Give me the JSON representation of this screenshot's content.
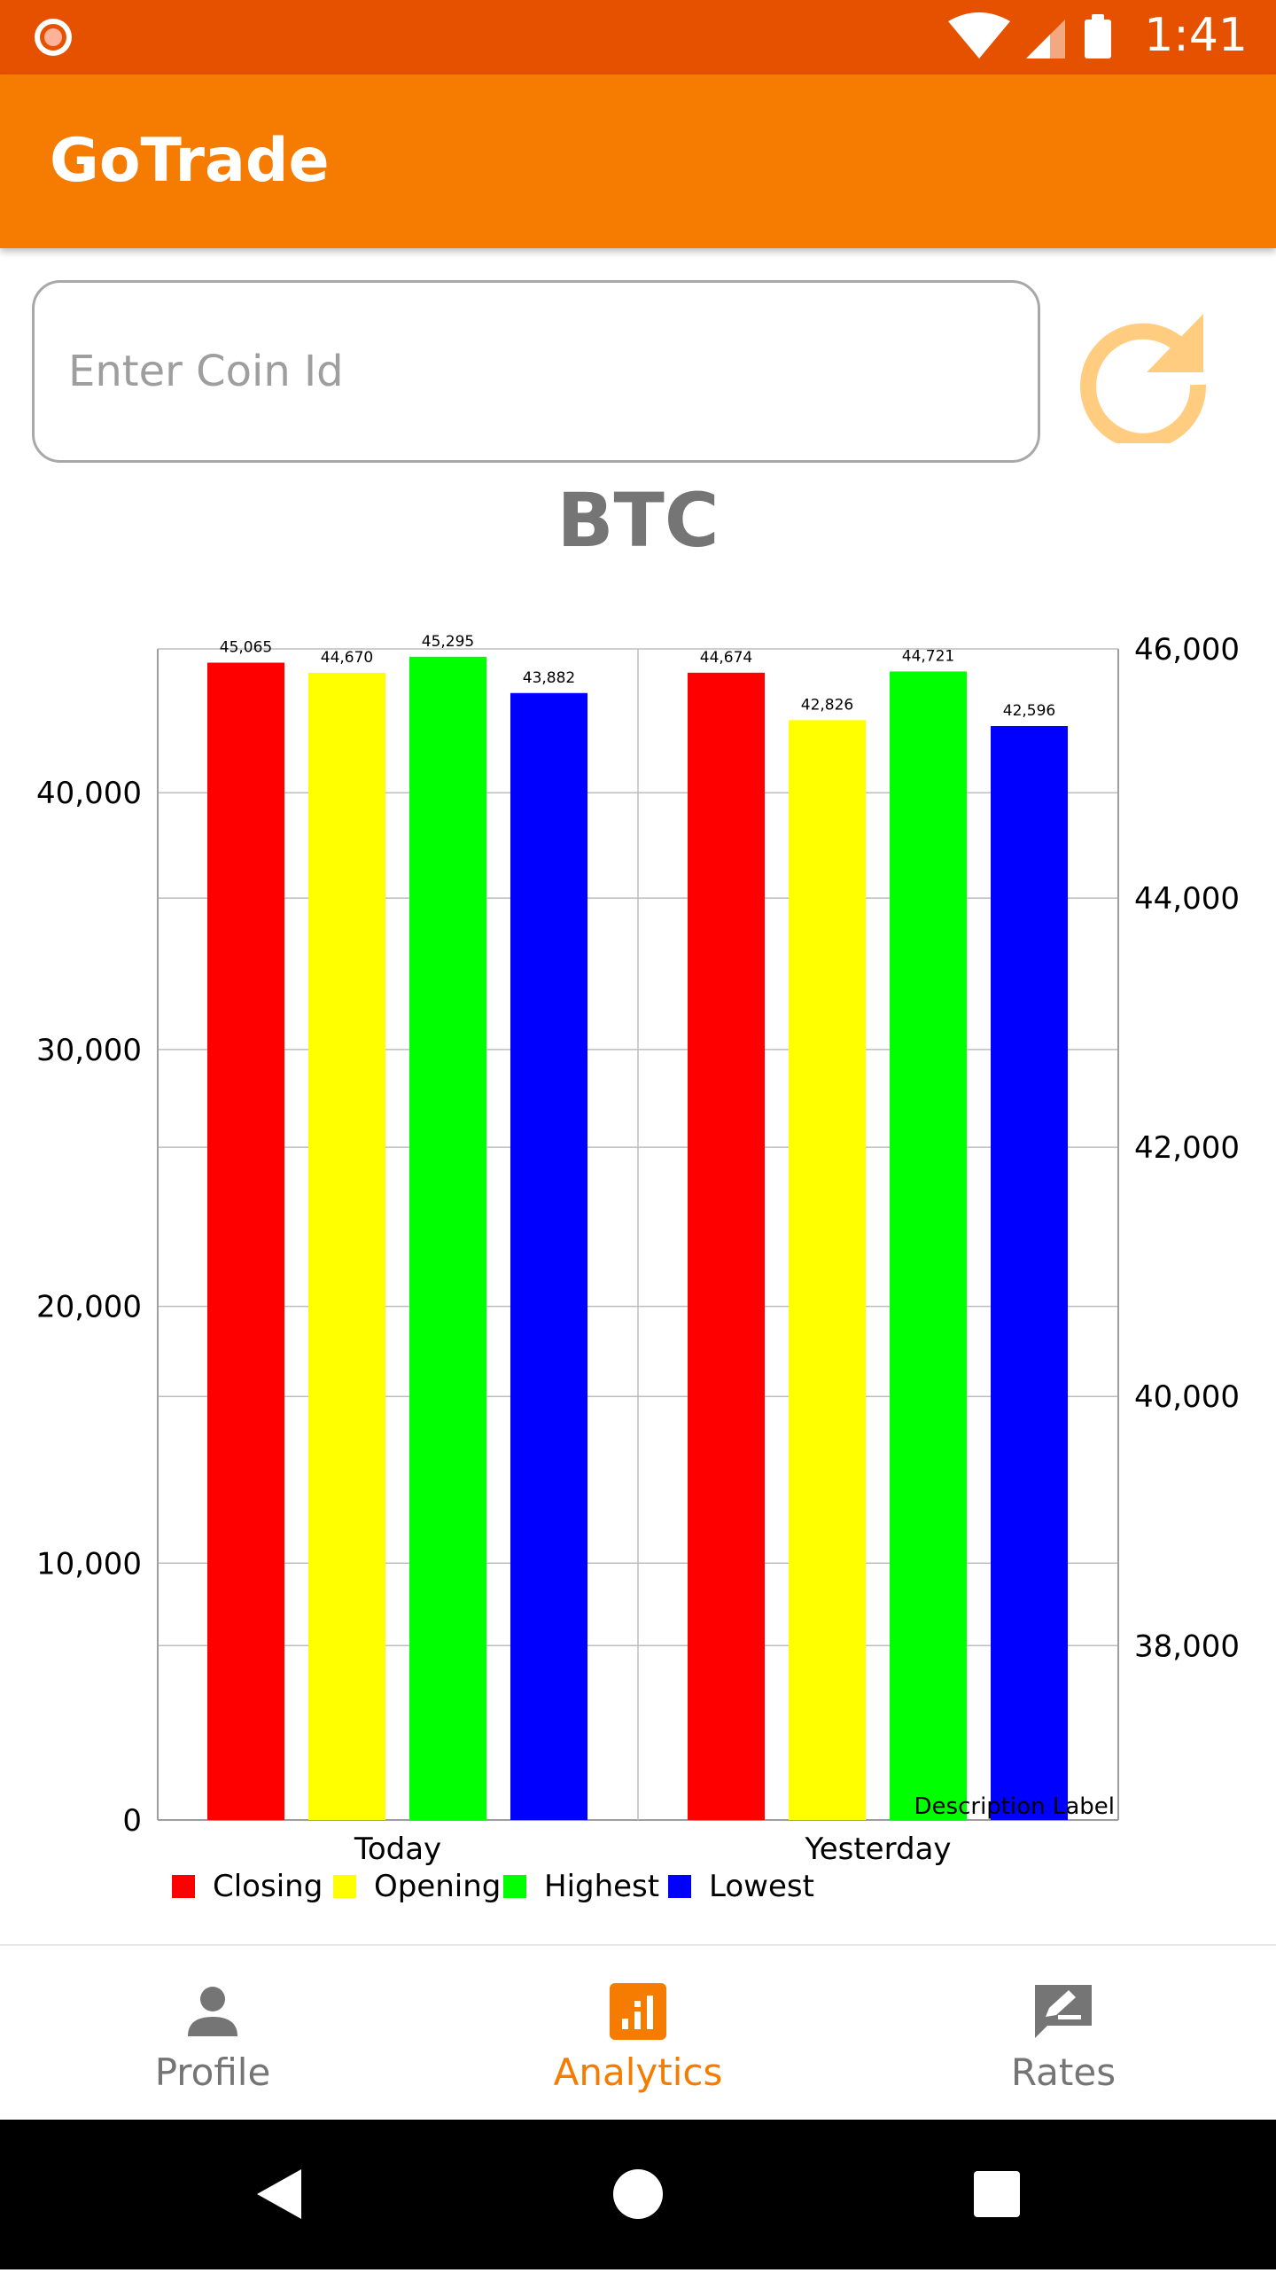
{
  "status_bar": {
    "time": "1:41"
  },
  "app_bar": {
    "title": "GoTrade"
  },
  "search": {
    "placeholder": "Enter Coin Id",
    "value": ""
  },
  "coin": {
    "symbol": "BTC"
  },
  "colors": {
    "accent": "#F57C00",
    "status_bar": "#E65100",
    "refresh": "#FFCC80"
  },
  "chart_data": {
    "type": "bar",
    "categories": [
      "Today",
      "Yesterday"
    ],
    "series": [
      {
        "name": "Closing",
        "color": "#FF0000",
        "values": [
          45065,
          44674
        ],
        "labels": [
          "45,065",
          "44,674"
        ]
      },
      {
        "name": "Opening",
        "color": "#FFFF00",
        "values": [
          44670,
          42826
        ],
        "labels": [
          "44,670",
          "42,826"
        ]
      },
      {
        "name": "Highest",
        "color": "#00FF00",
        "values": [
          45295,
          44721
        ],
        "labels": [
          "45,295",
          "44,721"
        ]
      },
      {
        "name": "Lowest",
        "color": "#0000FF",
        "values": [
          43882,
          42596
        ],
        "labels": [
          "43,882",
          "42,596"
        ]
      }
    ],
    "left_axis": {
      "ticks": [
        "0",
        "10,000",
        "20,000",
        "30,000",
        "40,000"
      ],
      "tick_values": [
        0,
        10000,
        20000,
        30000,
        40000
      ],
      "ylim": [
        0,
        45600
      ]
    },
    "right_axis": {
      "ticks": [
        "38,000",
        "40,000",
        "42,000",
        "44,000",
        "46,000"
      ],
      "tick_values": [
        38000,
        40000,
        42000,
        44000,
        46000
      ],
      "ylim": [
        36600,
        46000
      ]
    },
    "description": "Description Label",
    "legend_position": "bottom-left",
    "grid": true
  },
  "bottom_nav": {
    "items": [
      {
        "label": "Profile",
        "icon": "person-icon",
        "active": false
      },
      {
        "label": "Analytics",
        "icon": "analytics-icon",
        "active": true
      },
      {
        "label": "Rates",
        "icon": "rate-review-icon",
        "active": false
      }
    ]
  }
}
